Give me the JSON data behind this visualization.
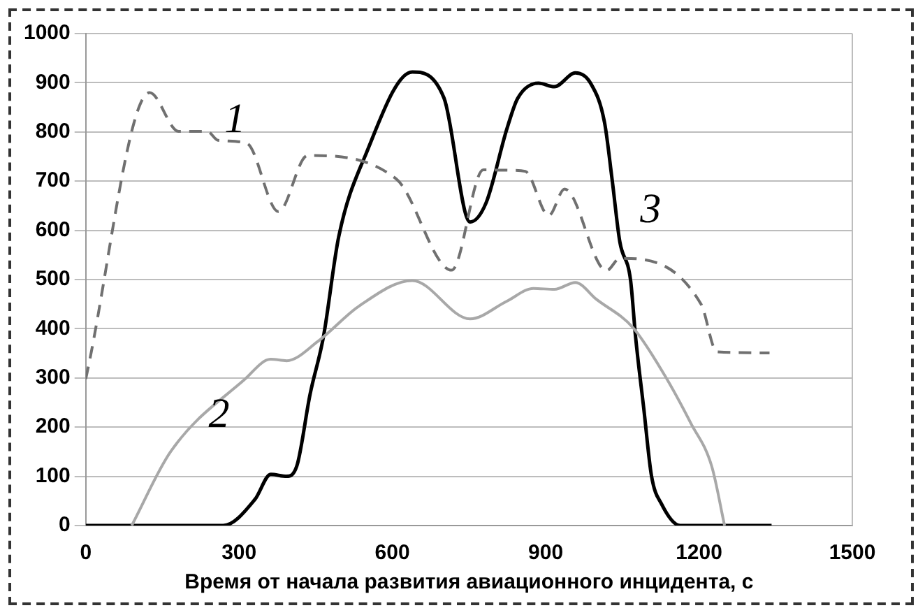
{
  "chart_data": {
    "type": "line",
    "xlabel": "Время от начала развития авиационного инцидента, с",
    "xlim": [
      0,
      1500
    ],
    "xticks": [
      0,
      300,
      600,
      900,
      1200,
      1500
    ],
    "ylim": [
      0,
      1000
    ],
    "yticks": [
      0,
      100,
      200,
      300,
      400,
      500,
      600,
      700,
      800,
      900,
      1000
    ],
    "grid": "y",
    "legend": false,
    "marker": "none",
    "series": [
      {
        "name": "1",
        "color": "#707070",
        "line_style": "dashed",
        "x": [
          0,
          125,
          182,
          238,
          259,
          315,
          377,
          434,
          608,
          716,
          778,
          834,
          860,
          906,
          937,
          1019,
          1045,
          1204,
          1235,
          1338
        ],
        "values": [
          298,
          880,
          801,
          801,
          783,
          777,
          638,
          752,
          704,
          519,
          723,
          722,
          720,
          630,
          684,
          518,
          543,
          450,
          353,
          351
        ]
      },
      {
        "name": "2",
        "color": "#a8a8a8",
        "line_style": "solid",
        "x": [
          90,
          166,
          310,
          362,
          393,
          454,
          536,
          639,
          752,
          824,
          876,
          917,
          958,
          999,
          1071,
          1133,
          1184,
          1225,
          1250
        ],
        "values": [
          0,
          150,
          296,
          338,
          335,
          374,
          447,
          498,
          420,
          456,
          482,
          480,
          494,
          460,
          402,
          305,
          208,
          120,
          0
        ]
      },
      {
        "name": "3",
        "color": "#000000",
        "line_style": "solid",
        "x": [
          0,
          269,
          331,
          362,
          393,
          413,
          439,
          465,
          495,
          547,
          639,
          701,
          752,
          783,
          824,
          845,
          886,
          917,
          958,
          989,
          1015,
          1030,
          1045,
          1066,
          1076,
          1092,
          1107,
          1127,
          1163,
          1342
        ],
        "values": [
          0,
          0,
          53,
          104,
          100,
          121,
          267,
          383,
          587,
          752,
          922,
          869,
          617,
          655,
          806,
          868,
          899,
          892,
          920,
          897,
          820,
          703,
          577,
          499,
          382,
          237,
          101,
          43,
          0,
          0
        ]
      }
    ]
  }
}
